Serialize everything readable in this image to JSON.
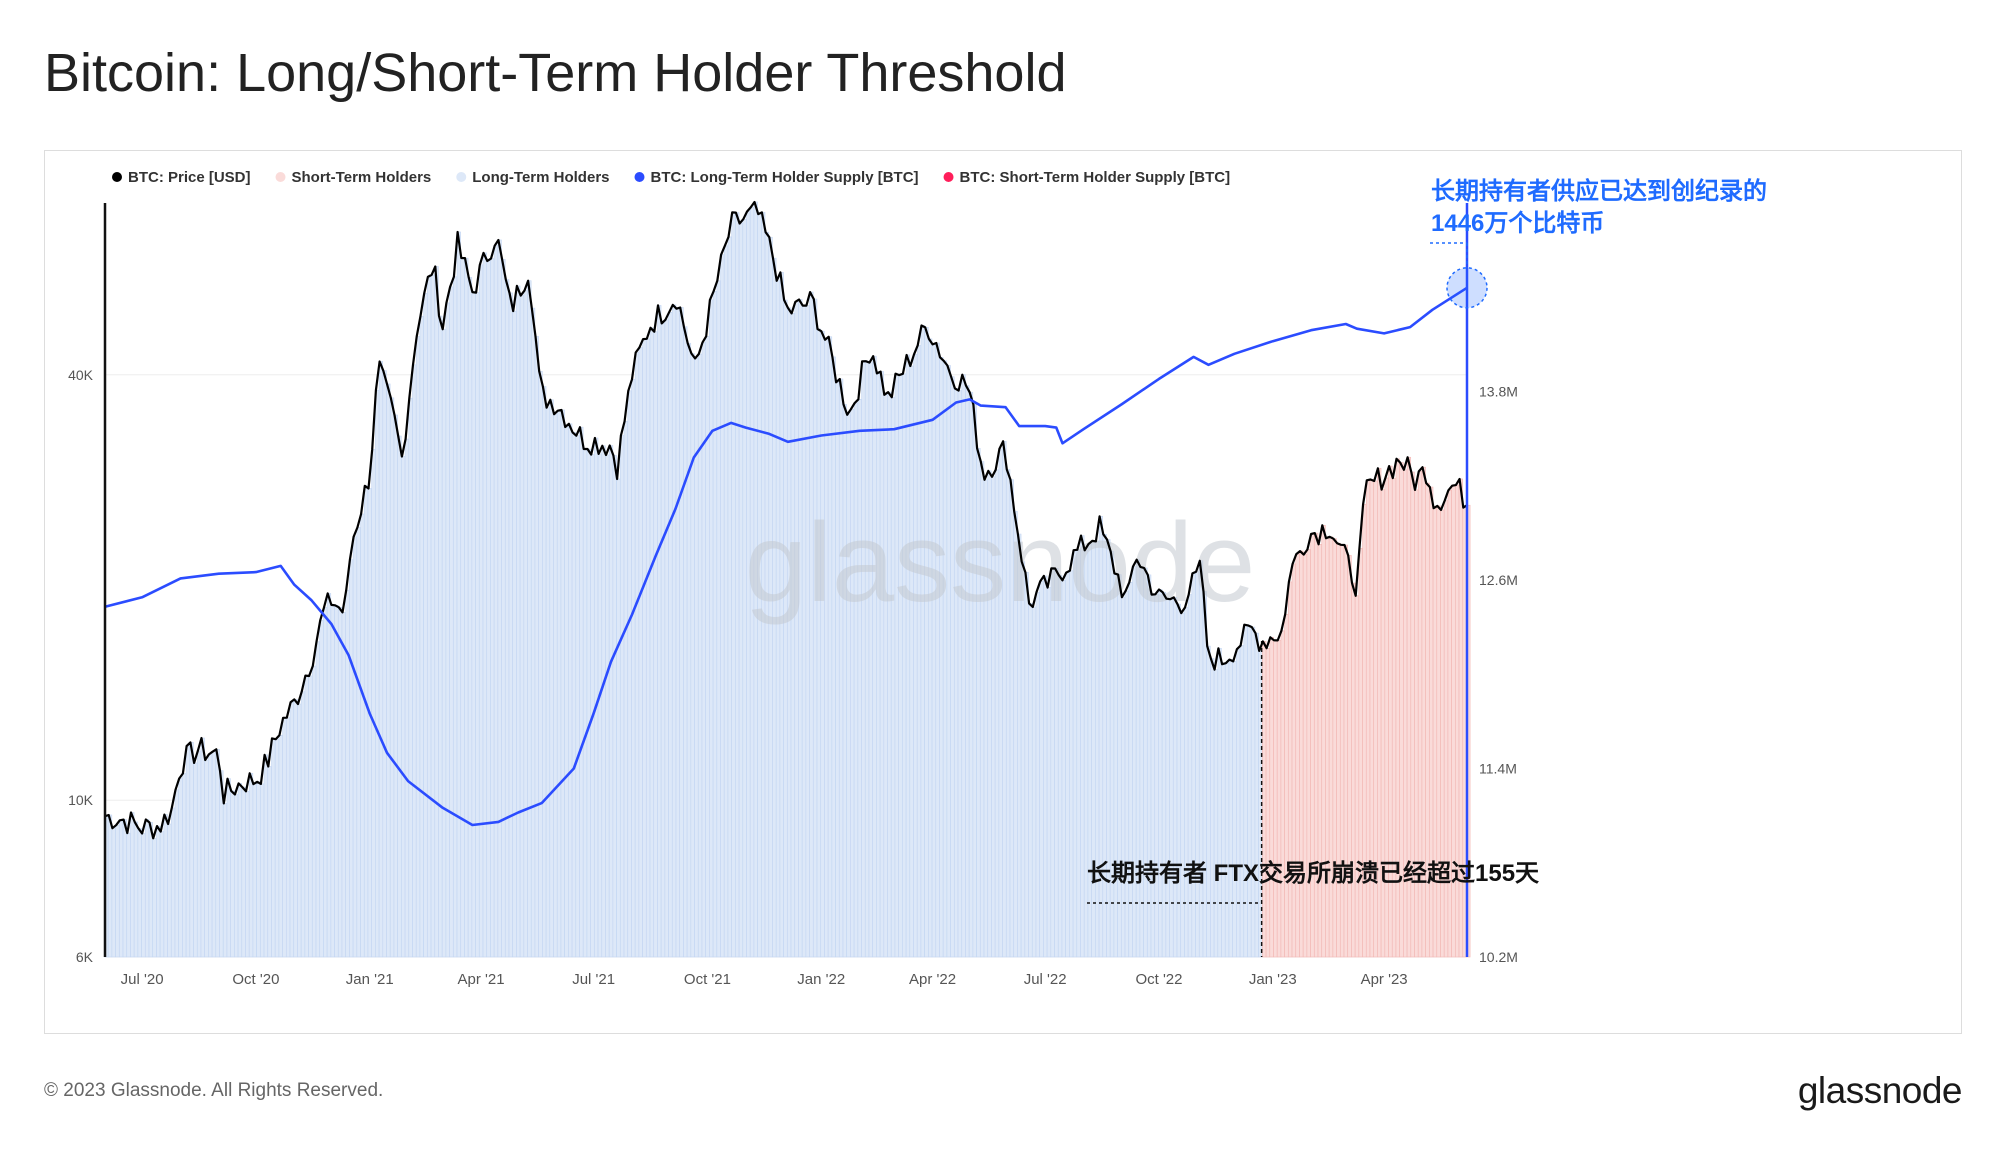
{
  "title": "Bitcoin: Long/Short-Term Holder Threshold",
  "footer": {
    "copyright": "© 2023 Glassnode. All Rights Reserved.",
    "brand": "glassnode"
  },
  "watermark": "glassnode",
  "colors": {
    "price": "#000000",
    "short_term_fill": "#fadbd9",
    "short_term_line": "#f2b8b5",
    "long_term_fill": "#dde8f8",
    "long_term_line": "#c4d6f2",
    "lth_supply": "#2b4cff",
    "sth_supply": "#ff1e5a",
    "annotation_blue": "#1f6bff"
  },
  "annotations": {
    "record": {
      "line1": "长期持有者供应已达到创纪录的",
      "line2": "1446万个比特币"
    },
    "ftx": "长期持有者  FTX交易所崩溃已经超过155天"
  },
  "chart_data": {
    "type": "line",
    "legend": [
      {
        "name": "BTC: Price [USD]",
        "color": "#000000",
        "muted": false
      },
      {
        "name": "Short-Term Holders",
        "color": "#fadbd9",
        "muted": false
      },
      {
        "name": "Long-Term Holders",
        "color": "#dde8f8",
        "muted": false
      },
      {
        "name": "BTC: Long-Term Holder Supply [BTC]",
        "color": "#2b4cff",
        "muted": false
      },
      {
        "name": "BTC: Short-Term Holder Supply [BTC]",
        "color": "#ff1e5a",
        "muted": true
      }
    ],
    "legend_position": "top-left",
    "x_ticks": [
      "Jul '20",
      "Oct '20",
      "Jan '21",
      "Apr '21",
      "Jul '21",
      "Oct '21",
      "Jan '22",
      "Apr '22",
      "Jul '22",
      "Oct '22",
      "Jan '23",
      "Apr '23"
    ],
    "x_range": [
      "2020-06-01",
      "2023-06-07"
    ],
    "left_axis": {
      "scale": "log",
      "range": [
        6000,
        70000
      ],
      "ticks": [
        "6K",
        "10K",
        "40K"
      ]
    },
    "right_axis": {
      "scale": "linear",
      "range": [
        10200000,
        15000000
      ],
      "ticks": [
        "10.2M",
        "11.4M",
        "12.6M",
        "13.8M"
      ]
    },
    "threshold_date": "2022-12-23",
    "series": [
      {
        "name": "BTC: Price [USD]",
        "axis": "left",
        "points": [
          [
            "2020-06-01",
            9500
          ],
          [
            "2020-06-15",
            9400
          ],
          [
            "2020-07-01",
            9150
          ],
          [
            "2020-07-15",
            9200
          ],
          [
            "2020-07-25",
            9700
          ],
          [
            "2020-08-01",
            11300
          ],
          [
            "2020-08-15",
            11800
          ],
          [
            "2020-09-01",
            11600
          ],
          [
            "2020-09-05",
            10200
          ],
          [
            "2020-09-20",
            10600
          ],
          [
            "2020-10-01",
            10700
          ],
          [
            "2020-10-10",
            11300
          ],
          [
            "2020-10-21",
            12800
          ],
          [
            "2020-11-01",
            13700
          ],
          [
            "2020-11-15",
            15900
          ],
          [
            "2020-11-25",
            18500
          ],
          [
            "2020-12-01",
            19200
          ],
          [
            "2020-12-12",
            18400
          ],
          [
            "2020-12-17",
            23000
          ],
          [
            "2021-01-01",
            29000
          ],
          [
            "2021-01-08",
            41000
          ],
          [
            "2021-01-20",
            35000
          ],
          [
            "2021-01-27",
            30500
          ],
          [
            "2021-02-08",
            46500
          ],
          [
            "2021-02-21",
            57500
          ],
          [
            "2021-03-01",
            47000
          ],
          [
            "2021-03-13",
            61000
          ],
          [
            "2021-03-25",
            52500
          ],
          [
            "2021-04-13",
            63500
          ],
          [
            "2021-04-25",
            49500
          ],
          [
            "2021-05-10",
            57000
          ],
          [
            "2021-05-19",
            37500
          ],
          [
            "2021-06-01",
            36500
          ],
          [
            "2021-06-22",
            32500
          ],
          [
            "2021-07-15",
            31800
          ],
          [
            "2021-07-20",
            29800
          ],
          [
            "2021-08-01",
            40000
          ],
          [
            "2021-08-15",
            47000
          ],
          [
            "2021-09-06",
            51800
          ],
          [
            "2021-09-21",
            40700
          ],
          [
            "2021-10-01",
            47700
          ],
          [
            "2021-10-20",
            65000
          ],
          [
            "2021-11-10",
            68000
          ],
          [
            "2021-11-25",
            57500
          ],
          [
            "2021-12-04",
            49000
          ],
          [
            "2021-12-25",
            50800
          ],
          [
            "2022-01-10",
            41800
          ],
          [
            "2022-01-24",
            35200
          ],
          [
            "2022-02-10",
            44000
          ],
          [
            "2022-02-24",
            37000
          ],
          [
            "2022-03-28",
            47100
          ],
          [
            "2022-04-15",
            40500
          ],
          [
            "2022-04-30",
            38500
          ],
          [
            "2022-05-12",
            29000
          ],
          [
            "2022-05-30",
            31500
          ],
          [
            "2022-06-18",
            19000
          ],
          [
            "2022-07-10",
            20800
          ],
          [
            "2022-08-14",
            24300
          ],
          [
            "2022-09-06",
            19000
          ],
          [
            "2022-09-12",
            22400
          ],
          [
            "2022-10-01",
            19300
          ],
          [
            "2022-10-20",
            19100
          ],
          [
            "2022-11-05",
            21300
          ],
          [
            "2022-11-09",
            16000
          ],
          [
            "2022-11-21",
            15800
          ],
          [
            "2022-12-15",
            17400
          ],
          [
            "2022-12-23",
            16800
          ],
          [
            "2023-01-10",
            17400
          ],
          [
            "2023-01-14",
            20900
          ],
          [
            "2023-01-29",
            23700
          ],
          [
            "2023-02-16",
            24500
          ],
          [
            "2023-03-10",
            20200
          ],
          [
            "2023-03-17",
            27400
          ],
          [
            "2023-04-14",
            30400
          ],
          [
            "2023-04-26",
            28400
          ],
          [
            "2023-05-06",
            29500
          ],
          [
            "2023-05-12",
            26300
          ],
          [
            "2023-05-28",
            28000
          ],
          [
            "2023-06-07",
            26500
          ]
        ]
      },
      {
        "name": "BTC: Long-Term Holder Supply [BTC]",
        "axis": "right",
        "points": [
          [
            "2020-06-01",
            12430000
          ],
          [
            "2020-07-01",
            12490000
          ],
          [
            "2020-08-01",
            12610000
          ],
          [
            "2020-09-01",
            12640000
          ],
          [
            "2020-10-01",
            12650000
          ],
          [
            "2020-10-21",
            12690000
          ],
          [
            "2020-11-01",
            12570000
          ],
          [
            "2020-11-15",
            12470000
          ],
          [
            "2020-12-01",
            12320000
          ],
          [
            "2020-12-15",
            12120000
          ],
          [
            "2021-01-01",
            11750000
          ],
          [
            "2021-01-15",
            11500000
          ],
          [
            "2021-02-01",
            11320000
          ],
          [
            "2021-03-01",
            11150000
          ],
          [
            "2021-03-25",
            11040000
          ],
          [
            "2021-04-15",
            11060000
          ],
          [
            "2021-05-01",
            11120000
          ],
          [
            "2021-05-20",
            11180000
          ],
          [
            "2021-06-15",
            11400000
          ],
          [
            "2021-07-01",
            11750000
          ],
          [
            "2021-07-15",
            12080000
          ],
          [
            "2021-08-01",
            12380000
          ],
          [
            "2021-08-20",
            12750000
          ],
          [
            "2021-09-05",
            13050000
          ],
          [
            "2021-09-20",
            13380000
          ],
          [
            "2021-10-05",
            13550000
          ],
          [
            "2021-10-20",
            13600000
          ],
          [
            "2021-11-01",
            13570000
          ],
          [
            "2021-11-20",
            13530000
          ],
          [
            "2021-12-05",
            13480000
          ],
          [
            "2022-01-01",
            13520000
          ],
          [
            "2022-02-01",
            13550000
          ],
          [
            "2022-03-01",
            13560000
          ],
          [
            "2022-04-01",
            13620000
          ],
          [
            "2022-04-20",
            13730000
          ],
          [
            "2022-05-01",
            13750000
          ],
          [
            "2022-05-10",
            13710000
          ],
          [
            "2022-05-30",
            13700000
          ],
          [
            "2022-06-10",
            13580000
          ],
          [
            "2022-07-01",
            13580000
          ],
          [
            "2022-07-10",
            13570000
          ],
          [
            "2022-07-15",
            13470000
          ],
          [
            "2022-08-01",
            13560000
          ],
          [
            "2022-09-01",
            13720000
          ],
          [
            "2022-10-01",
            13880000
          ],
          [
            "2022-10-29",
            14020000
          ],
          [
            "2022-11-10",
            13970000
          ],
          [
            "2022-12-01",
            14040000
          ],
          [
            "2023-01-01",
            14120000
          ],
          [
            "2023-02-01",
            14190000
          ],
          [
            "2023-03-01",
            14230000
          ],
          [
            "2023-03-10",
            14200000
          ],
          [
            "2023-04-01",
            14170000
          ],
          [
            "2023-04-22",
            14210000
          ],
          [
            "2023-05-10",
            14320000
          ],
          [
            "2023-06-07",
            14460000
          ]
        ]
      }
    ]
  }
}
